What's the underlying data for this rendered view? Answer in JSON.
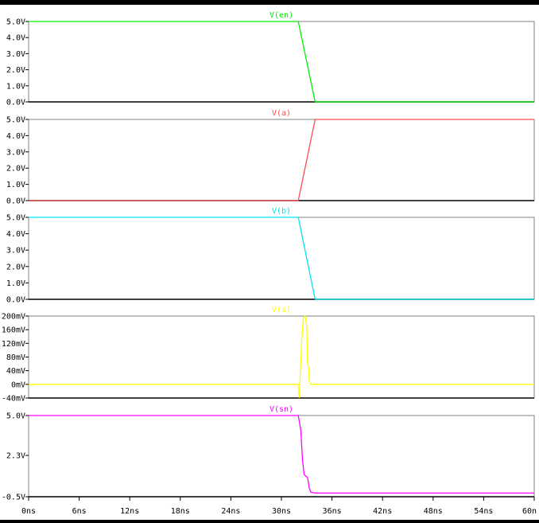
{
  "chart_data": [
    {
      "type": "line",
      "title": "V(en)",
      "color": "#00ee00",
      "ylim": [
        0,
        5
      ],
      "y_ticks": [
        "5.0V",
        "4.0V",
        "3.0V",
        "2.0V",
        "1.0V",
        "0.0V"
      ],
      "y_tick_values": [
        5,
        4,
        3,
        2,
        1,
        0
      ],
      "series": [
        {
          "x": [
            0,
            32,
            34,
            60
          ],
          "y": [
            5,
            5,
            0,
            0
          ]
        }
      ]
    },
    {
      "type": "line",
      "title": "V(a)",
      "color": "#ff4d4d",
      "ylim": [
        0,
        5
      ],
      "y_ticks": [
        "5.0V",
        "4.0V",
        "3.0V",
        "2.0V",
        "1.0V",
        "0.0V"
      ],
      "y_tick_values": [
        5,
        4,
        3,
        2,
        1,
        0
      ],
      "series": [
        {
          "x": [
            0,
            32,
            34,
            60
          ],
          "y": [
            0,
            0,
            5,
            5
          ]
        }
      ]
    },
    {
      "type": "line",
      "title": "V(b)",
      "color": "#00e5ee",
      "ylim": [
        0,
        5
      ],
      "y_ticks": [
        "5.0V",
        "4.0V",
        "3.0V",
        "2.0V",
        "1.0V",
        "0.0V"
      ],
      "y_tick_values": [
        5,
        4,
        3,
        2,
        1,
        0
      ],
      "series": [
        {
          "x": [
            0,
            32,
            34,
            60
          ],
          "y": [
            5,
            5,
            0,
            0
          ]
        }
      ]
    },
    {
      "type": "line",
      "title": "V(s)",
      "color": "#ffff00",
      "ylim": [
        -40,
        200
      ],
      "y_ticks": [
        "200mV",
        "160mV",
        "120mV",
        "80mV",
        "40mV",
        "0mV",
        "-40mV"
      ],
      "y_tick_values": [
        200,
        160,
        120,
        80,
        40,
        0,
        -40
      ],
      "series": [
        {
          "x": [
            0,
            32.0,
            32.1,
            32.4,
            32.6,
            32.8,
            33.0,
            33.1,
            33.2,
            33.3,
            33.5,
            60
          ],
          "y": [
            0,
            0,
            -40,
            120,
            195,
            200,
            170,
            60,
            55,
            10,
            0,
            0
          ]
        }
      ]
    },
    {
      "type": "line",
      "title": "V(sn)",
      "color": "#ff00ff",
      "ylim": [
        -0.5,
        5
      ],
      "y_ticks": [
        "5.0V",
        "2.3V",
        "-0.5V"
      ],
      "y_tick_values": [
        5,
        2.3,
        -0.5
      ],
      "series": [
        {
          "x": [
            0,
            32.0,
            32.3,
            32.5,
            32.7,
            32.9,
            33.1,
            33.3,
            33.5,
            34.0,
            60
          ],
          "y": [
            5,
            5,
            4,
            2,
            1.0,
            0.9,
            0.8,
            0.1,
            -0.2,
            -0.25,
            -0.25
          ]
        }
      ]
    }
  ],
  "x_axis": {
    "xlim": [
      0,
      60
    ],
    "ticks": [
      "0ns",
      "6ns",
      "12ns",
      "18ns",
      "24ns",
      "30ns",
      "36ns",
      "42ns",
      "48ns",
      "54ns",
      "60n"
    ],
    "tick_values": [
      0,
      6,
      12,
      18,
      24,
      30,
      36,
      42,
      48,
      54,
      60
    ]
  }
}
